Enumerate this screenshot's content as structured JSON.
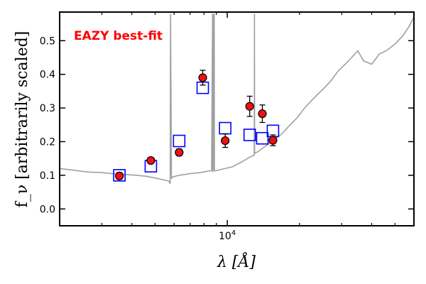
{
  "chart_data": {
    "type": "scatter",
    "title": "",
    "annotation": "EAZY best-fit",
    "annotation_color": "#ff0000",
    "xlabel": "λ [Å]",
    "ylabel": "f_ν [arbitrarily scaled]",
    "x_scale": "log",
    "xlim": [
      2000,
      60000
    ],
    "ylim": [
      -0.05,
      0.585
    ],
    "x_ticks": [
      {
        "value": 10000,
        "label": "10^4"
      }
    ],
    "y_ticks": [
      0.0,
      0.1,
      0.2,
      0.3,
      0.4,
      0.5
    ],
    "y_tick_labels": [
      "0.0",
      "0.1",
      "0.2",
      "0.3",
      "0.4",
      "0.5"
    ],
    "grid": false,
    "series": [
      {
        "kind": "line",
        "color": "#a0a0a0",
        "x": [
          2000,
          2300,
          2600,
          3000,
          3400,
          3800,
          4200,
          4600,
          5000,
          5400,
          5700,
          5780,
          5800,
          5850,
          5900,
          6300,
          7000,
          7500,
          8000,
          8400,
          8600,
          8680,
          8700,
          8720,
          8800,
          8820,
          8840,
          8900,
          9500,
          10500,
          11500,
          12500,
          12950,
          12980,
          13000,
          13400,
          14000,
          15000,
          16000,
          17000,
          18000,
          19500,
          21000,
          23000,
          25000,
          27000,
          29000,
          31000,
          33000,
          35000,
          37000,
          40000,
          43000,
          46000,
          50000,
          54000,
          57000,
          60000
        ],
        "y": [
          0.12,
          0.115,
          0.11,
          0.108,
          0.104,
          0.102,
          0.1,
          0.097,
          0.092,
          0.087,
          0.083,
          0.075,
          0.58,
          0.09,
          0.095,
          0.1,
          0.105,
          0.107,
          0.11,
          0.113,
          0.114,
          0.58,
          0.11,
          0.58,
          0.114,
          0.58,
          0.113,
          0.113,
          0.118,
          0.125,
          0.14,
          0.155,
          0.16,
          0.58,
          0.165,
          0.17,
          0.18,
          0.195,
          0.21,
          0.225,
          0.245,
          0.27,
          0.3,
          0.33,
          0.355,
          0.38,
          0.41,
          0.43,
          0.45,
          0.47,
          0.44,
          0.43,
          0.46,
          0.47,
          0.49,
          0.515,
          0.54,
          0.57
        ]
      },
      {
        "name": "",
        "kind": "model",
        "marker": "open-square",
        "color": "#0000ff",
        "x": [
          3550,
          4800,
          6300,
          7900,
          9800,
          12400,
          14000,
          15500
        ],
        "y": [
          0.1,
          0.127,
          0.202,
          0.36,
          0.24,
          0.22,
          0.21,
          0.232
        ]
      },
      {
        "name": "",
        "kind": "observed",
        "marker": "filled-circle",
        "color": "#ee1111",
        "edge_color": "#000000",
        "x": [
          3550,
          4800,
          6300,
          7900,
          9800,
          12400,
          14000,
          15500
        ],
        "y": [
          0.098,
          0.144,
          0.168,
          0.39,
          0.203,
          0.305,
          0.283,
          0.204
        ],
        "yerr": [
          0.01,
          0.006,
          0.01,
          0.022,
          0.02,
          0.03,
          0.026,
          0.016
        ]
      }
    ]
  }
}
